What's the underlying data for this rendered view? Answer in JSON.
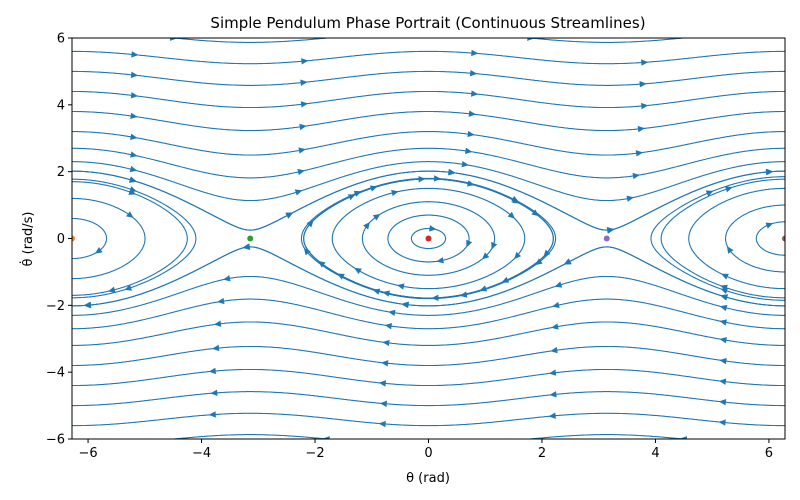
{
  "chart_data": {
    "type": "streamplot",
    "title": "Simple Pendulum Phase Portrait (Continuous Streamlines)",
    "xlabel": "θ (rad)",
    "ylabel": "θ̇ (rad/s)",
    "xlim": [
      -6.283,
      6.283
    ],
    "ylim": [
      -6,
      6
    ],
    "xticks": [
      -6,
      -4,
      -2,
      0,
      2,
      4,
      6
    ],
    "yticks": [
      -6,
      -4,
      -2,
      0,
      2,
      4,
      6
    ],
    "xtick_labels": [
      "−6",
      "−4",
      "−2",
      "0",
      "2",
      "4",
      "6"
    ],
    "ytick_labels": [
      "−6",
      "−4",
      "−2",
      "0",
      "2",
      "4",
      "6"
    ],
    "grid": false,
    "field": {
      "dtheta": "omega",
      "domega": "-sin(theta)"
    },
    "stream_color": "#1f77b4",
    "equilibria": [
      {
        "theta": -6.283,
        "omega": 0,
        "color": "#ff7f0e"
      },
      {
        "theta": -3.1416,
        "omega": 0,
        "color": "#2ca02c"
      },
      {
        "theta": 0,
        "omega": 0,
        "color": "#d62728"
      },
      {
        "theta": 3.1416,
        "omega": 0,
        "color": "#9467bd"
      },
      {
        "theta": 6.283,
        "omega": 0,
        "color": "#8c564b"
      }
    ],
    "streamlines": [
      {
        "theta0": 0,
        "omega0": 0.3
      },
      {
        "theta0": 0,
        "omega0": 0.7
      },
      {
        "theta0": 0,
        "omega0": 1.1
      },
      {
        "theta0": 0,
        "omega0": 1.5
      },
      {
        "theta0": 0,
        "omega0": 1.8
      },
      {
        "theta0": 6.283,
        "omega0": 0.5
      },
      {
        "theta0": 6.283,
        "omega0": 1.0
      },
      {
        "theta0": 6.283,
        "omega0": 1.5
      },
      {
        "theta0": 6.283,
        "omega0": 1.85
      },
      {
        "theta0": -6.283,
        "omega0": 0.6
      },
      {
        "theta0": -6.283,
        "omega0": 1.2
      },
      {
        "theta0": -6.283,
        "omega0": 1.7
      },
      {
        "theta0": 0,
        "omega0": 2.3
      },
      {
        "theta0": 0,
        "omega0": 2.7
      },
      {
        "theta0": 0,
        "omega0": 3.2
      },
      {
        "theta0": 0,
        "omega0": 3.8
      },
      {
        "theta0": 0,
        "omega0": 4.4
      },
      {
        "theta0": 0,
        "omega0": 5.0
      },
      {
        "theta0": 0,
        "omega0": 5.6
      },
      {
        "theta0": 0,
        "omega0": 6.2
      },
      {
        "theta0": 0,
        "omega0": -2.3
      },
      {
        "theta0": 0,
        "omega0": -2.7
      },
      {
        "theta0": 0,
        "omega0": -3.2
      },
      {
        "theta0": 0,
        "omega0": -3.8
      },
      {
        "theta0": 0,
        "omega0": -4.4
      },
      {
        "theta0": 0,
        "omega0": -5.0
      },
      {
        "theta0": 0,
        "omega0": -5.6
      },
      {
        "theta0": 0,
        "omega0": -6.2
      },
      {
        "theta0": -3.1416,
        "omega0": 0.25
      },
      {
        "theta0": -3.1416,
        "omega0": -0.25
      },
      {
        "theta0": 3.1416,
        "omega0": 0.25
      },
      {
        "theta0": 3.1416,
        "omega0": -0.25
      },
      {
        "theta0": -2.2,
        "omega0": 0
      },
      {
        "theta0": 2.2,
        "omega0": 0
      },
      {
        "theta0": -4.1,
        "omega0": 0
      },
      {
        "theta0": 4.1,
        "omega0": 0
      }
    ]
  }
}
